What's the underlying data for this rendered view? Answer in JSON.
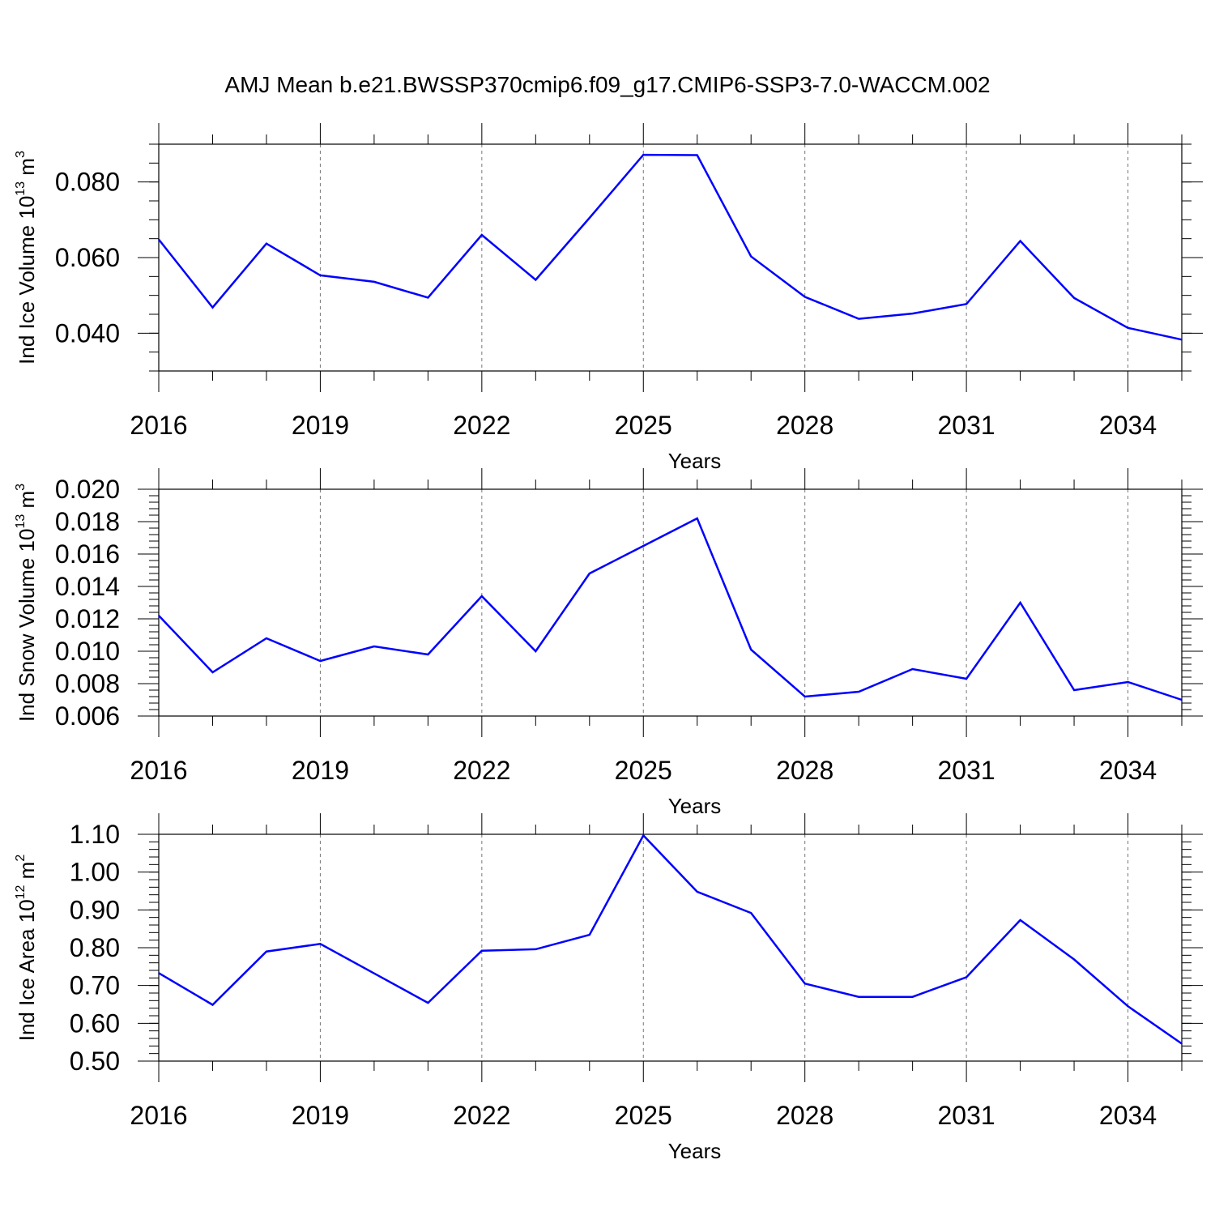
{
  "title": "AMJ Mean b.e21.BWSSP370cmip6.f09_g17.CMIP6-SSP3-7.0-WACCM.002",
  "colors": {
    "line": "#0000ff",
    "axis": "#000000",
    "grid": "#777777"
  },
  "chart_data": [
    {
      "type": "line",
      "xlabel": "Years",
      "ylabel": {
        "text": "Ind Ice Volume 10",
        "sup": "13",
        "unit": " m",
        "unit_sup": "3"
      },
      "xlim": [
        2016,
        2035
      ],
      "ylim": [
        0.03,
        0.09
      ],
      "x_ticks": [
        2016,
        2019,
        2022,
        2025,
        2028,
        2031,
        2034
      ],
      "x_tick_labels": [
        "2016",
        "2019",
        "2022",
        "2025",
        "2028",
        "2031",
        "2034"
      ],
      "y_ticks": [
        0.04,
        0.06,
        0.08
      ],
      "y_tick_labels": [
        "0.040",
        "0.060",
        "0.080"
      ],
      "y_minor_step": 0.005,
      "grid": "vertical dashed at major x ticks",
      "series": [
        {
          "x": [
            2016,
            2017,
            2018,
            2019,
            2020,
            2021,
            2022,
            2023,
            2024,
            2025,
            2026,
            2027,
            2028,
            2029,
            2030,
            2031,
            2032,
            2033,
            2034,
            2035
          ],
          "values": [
            0.0648,
            0.0468,
            0.0637,
            0.0553,
            0.0536,
            0.0494,
            0.066,
            0.0541,
            0.0705,
            0.0872,
            0.0871,
            0.0603,
            0.0496,
            0.0438,
            0.0452,
            0.0477,
            0.0644,
            0.0493,
            0.0414,
            0.0383
          ]
        }
      ]
    },
    {
      "type": "line",
      "xlabel": "Years",
      "ylabel": {
        "text": "Ind Snow Volume 10",
        "sup": "13",
        "unit": " m",
        "unit_sup": "3"
      },
      "xlim": [
        2016,
        2035
      ],
      "ylim": [
        0.006,
        0.02
      ],
      "x_ticks": [
        2016,
        2019,
        2022,
        2025,
        2028,
        2031,
        2034
      ],
      "x_tick_labels": [
        "2016",
        "2019",
        "2022",
        "2025",
        "2028",
        "2031",
        "2034"
      ],
      "y_ticks": [
        0.006,
        0.008,
        0.01,
        0.012,
        0.014,
        0.016,
        0.018,
        0.02
      ],
      "y_tick_labels": [
        "0.006",
        "0.008",
        "0.010",
        "0.012",
        "0.014",
        "0.016",
        "0.018",
        "0.020"
      ],
      "y_minor_step": 0.0004,
      "grid": "vertical dashed at major x ticks",
      "series": [
        {
          "x": [
            2016,
            2017,
            2018,
            2019,
            2020,
            2021,
            2022,
            2023,
            2024,
            2025,
            2026,
            2027,
            2028,
            2029,
            2030,
            2031,
            2032,
            2033,
            2034,
            2035
          ],
          "values": [
            0.0122,
            0.0087,
            0.0108,
            0.0094,
            0.0103,
            0.0098,
            0.0134,
            0.01,
            0.0148,
            0.0165,
            0.0182,
            0.0101,
            0.0072,
            0.0075,
            0.0089,
            0.0083,
            0.013,
            0.0076,
            0.0081,
            0.007
          ]
        }
      ]
    },
    {
      "type": "line",
      "xlabel": "Years",
      "ylabel": {
        "text": "Ind Ice Area 10",
        "sup": "12",
        "unit": " m",
        "unit_sup": "2"
      },
      "xlim": [
        2016,
        2035
      ],
      "ylim": [
        0.5,
        1.1
      ],
      "x_ticks": [
        2016,
        2019,
        2022,
        2025,
        2028,
        2031,
        2034
      ],
      "x_tick_labels": [
        "2016",
        "2019",
        "2022",
        "2025",
        "2028",
        "2031",
        "2034"
      ],
      "y_ticks": [
        0.5,
        0.6,
        0.7,
        0.8,
        0.9,
        1.0,
        1.1
      ],
      "y_tick_labels": [
        "0.50",
        "0.60",
        "0.70",
        "0.80",
        "0.90",
        "1.00",
        "1.10"
      ],
      "y_minor_step": 0.02,
      "grid": "vertical dashed at major x ticks",
      "series": [
        {
          "x": [
            2016,
            2017,
            2018,
            2019,
            2020,
            2021,
            2022,
            2023,
            2024,
            2025,
            2026,
            2027,
            2028,
            2029,
            2030,
            2031,
            2032,
            2033,
            2034,
            2035
          ],
          "values": [
            0.733,
            0.649,
            0.79,
            0.81,
            0.732,
            0.654,
            0.792,
            0.796,
            0.834,
            1.097,
            0.948,
            0.892,
            0.705,
            0.67,
            0.67,
            0.722,
            0.873,
            0.769,
            0.645,
            0.546
          ]
        }
      ]
    }
  ]
}
